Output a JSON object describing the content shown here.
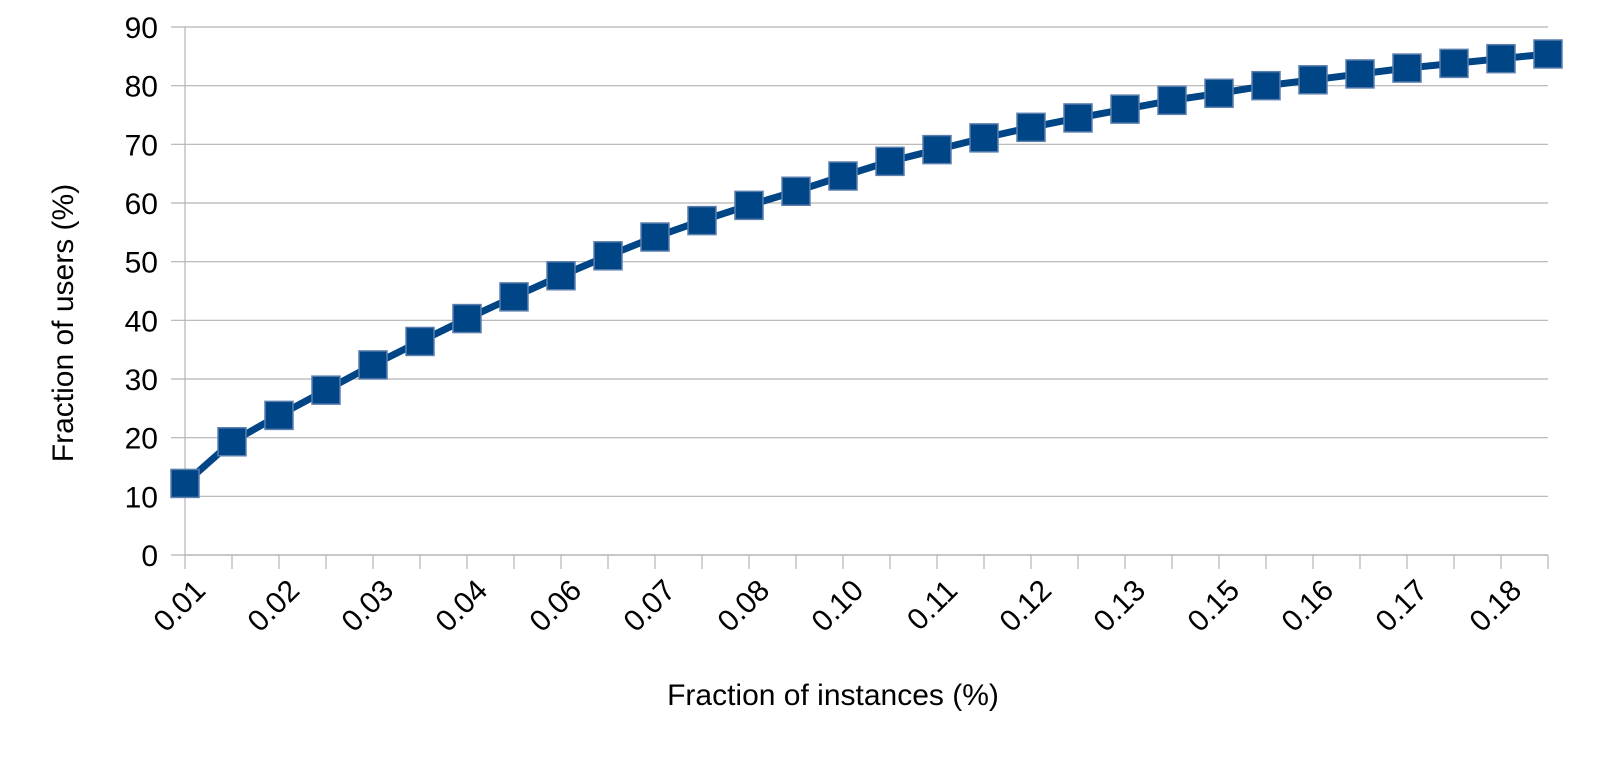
{
  "chart_data": {
    "type": "line",
    "title": "",
    "xlabel": "Fraction of instances (%)",
    "ylabel": "Fraction of users (%)",
    "x_tick_labels": [
      "0.01",
      "0.02",
      "0.03",
      "0.04",
      "0.06",
      "0.07",
      "0.08",
      "0.10",
      "0.11",
      "0.12",
      "0.13",
      "0.15",
      "0.16",
      "0.17",
      "0.18"
    ],
    "y_tick_labels": [
      "0",
      "10",
      "20",
      "30",
      "40",
      "50",
      "60",
      "70",
      "80",
      "90"
    ],
    "ylim": [
      0,
      90
    ],
    "grid": true,
    "legend": "none",
    "colors": {
      "series": "#004586",
      "grid": "#b3b3b3",
      "axis": "#b3b3b3"
    },
    "series": [
      {
        "values": [
          12.2,
          19.3,
          23.8,
          28.1,
          32.4,
          36.4,
          40.3,
          44.0,
          47.6,
          51.0,
          54.2,
          57.0,
          59.6,
          62.0,
          64.6,
          67.1,
          69.1,
          71.1,
          72.9,
          74.5,
          76.0,
          77.5,
          78.7,
          80.0,
          81.0,
          82.0,
          83.0,
          83.8,
          84.6,
          85.4
        ]
      }
    ]
  }
}
